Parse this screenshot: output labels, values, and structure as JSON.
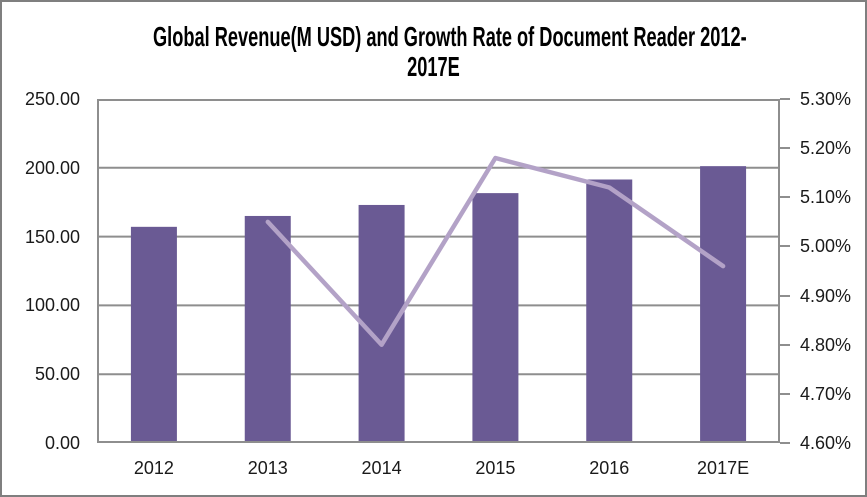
{
  "title": {
    "full": "Global Revenue(M USD) and Growth Rate of Document Reader 2012-2017E",
    "line1": "Global Revenue(M USD) and Growth Rate of Document Reader 2012-",
    "line2": "2017E"
  },
  "chart_data": {
    "type": "combo-bar-line",
    "title": "Global Revenue(M USD) and Growth Rate of Document Reader 2012-2017E",
    "categories": [
      "2012",
      "2013",
      "2014",
      "2015",
      "2016",
      "2017E"
    ],
    "series": [
      {
        "name": "Global Revenue (M USD)",
        "type": "bar",
        "axis": "left",
        "color": "#6A5A94",
        "values": [
          157.1,
          165.0,
          173.0,
          181.6,
          191.5,
          201.2
        ]
      },
      {
        "name": "Growth Rate (%)",
        "type": "line",
        "axis": "right",
        "color": "#B3A2C7",
        "values": [
          null,
          5.05,
          4.8,
          5.18,
          5.12,
          4.96
        ]
      }
    ],
    "left_axis": {
      "min": 0,
      "max": 250,
      "step": 50,
      "tick_labels": [
        "0.00",
        "50.00",
        "100.00",
        "150.00",
        "200.00",
        "250.00"
      ]
    },
    "right_axis": {
      "min": 4.6,
      "max": 5.3,
      "step": 0.1,
      "tick_labels": [
        "4.60%",
        "4.70%",
        "4.80%",
        "4.90%",
        "5.00%",
        "5.10%",
        "5.20%",
        "5.30%"
      ]
    },
    "gridlines": "horizontal-left-axis-steps",
    "legend_position": "none"
  },
  "colors": {
    "bar": "#6A5A94",
    "line": "#B3A2C7",
    "grid": "#8E8E8E",
    "axis_text": "#1A1A1A",
    "title_text": "#000000",
    "background": "#FFFFFF",
    "frame_border": "#7F7F7F"
  }
}
